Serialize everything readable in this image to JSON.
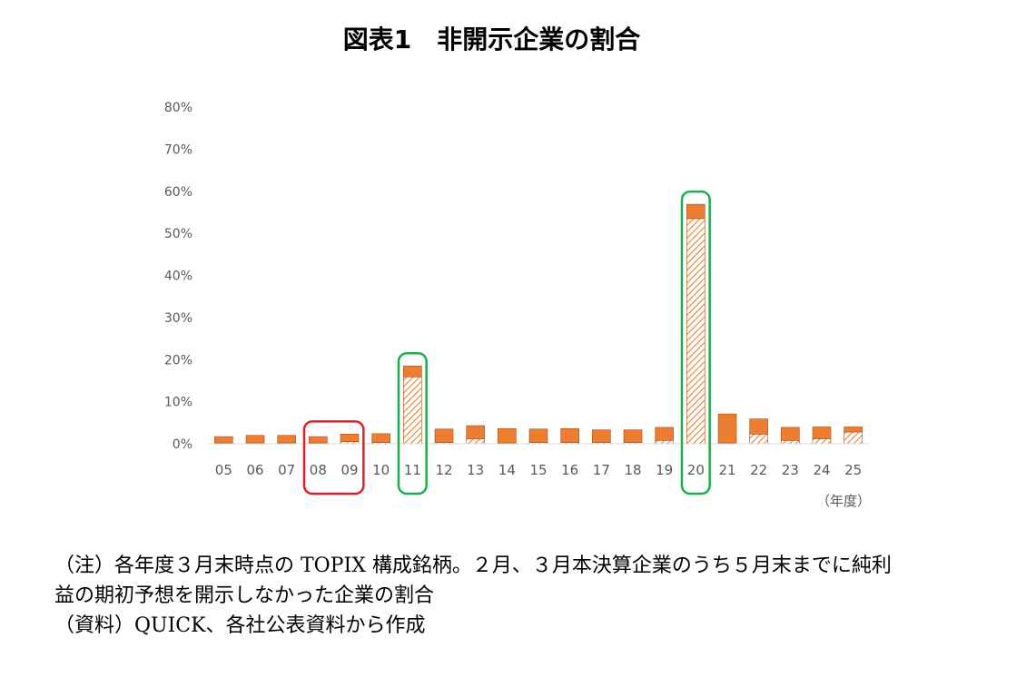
{
  "title": "図表1　非開示企業の割合",
  "chart_data": {
    "type": "bar",
    "stacked": true,
    "categories": [
      "05",
      "06",
      "07",
      "08",
      "09",
      "10",
      "11",
      "12",
      "13",
      "14",
      "15",
      "16",
      "17",
      "18",
      "19",
      "20",
      "21",
      "22",
      "23",
      "24",
      "25"
    ],
    "series": [
      {
        "pattern": "hatched",
        "color": "#ED7D31",
        "values": [
          0.2,
          0.2,
          0.2,
          0.2,
          0.5,
          0.3,
          15.9,
          0.3,
          1.2,
          0.2,
          0.3,
          0.3,
          0.3,
          0.3,
          0.8,
          53.5,
          0.2,
          2.3,
          0.8,
          1.2,
          2.8
        ]
      },
      {
        "pattern": "solid",
        "color": "#ED7D31",
        "values": [
          1.5,
          1.8,
          1.8,
          1.5,
          1.8,
          2.1,
          2.6,
          3.2,
          3.1,
          3.4,
          3.2,
          3.3,
          3.0,
          3.0,
          3.1,
          3.4,
          6.9,
          3.6,
          3.1,
          2.8,
          1.2
        ]
      }
    ],
    "yticks": [
      "0%",
      "10%",
      "20%",
      "30%",
      "40%",
      "50%",
      "60%",
      "70%",
      "80%"
    ],
    "ylim": [
      0,
      80
    ],
    "xlabel": "（年度）",
    "highlights": [
      {
        "categories": [
          "08",
          "09"
        ],
        "color": "#E31E24"
      },
      {
        "categories": [
          "11"
        ],
        "color": "#22AA4F"
      },
      {
        "categories": [
          "20"
        ],
        "color": "#22AA4F"
      }
    ],
    "grid": false,
    "legend": "none"
  },
  "notes": [
    "（注）各年度３月末時点の TOPIX 構成銘柄。２月、３月本決算企業のうち５月末までに純利",
    "益の期初予想を開示しなかった企業の割合",
    "（資料）QUICK、各社公表資料から作成"
  ]
}
